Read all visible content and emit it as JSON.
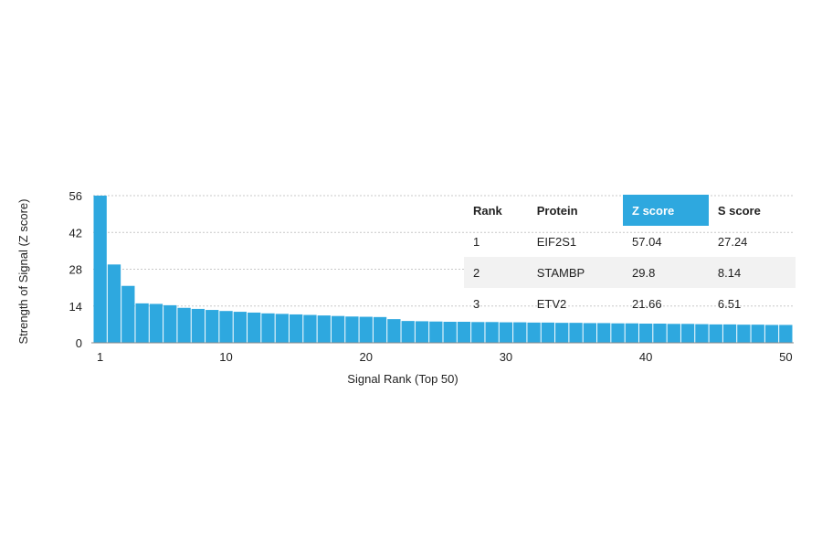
{
  "chart_data": {
    "type": "bar",
    "ylabel": "Strength of Signal (Z score)",
    "xlabel": "Signal Rank (Top 50)",
    "ylim": [
      0,
      56
    ],
    "yticks": [
      0,
      14,
      28,
      42,
      56
    ],
    "xticks": [
      1,
      10,
      20,
      30,
      40,
      50
    ],
    "grid": "dotted horizontal at y ticks",
    "bar_color": "#2ea8df",
    "categories": [
      1,
      2,
      3,
      4,
      5,
      6,
      7,
      8,
      9,
      10,
      11,
      12,
      13,
      14,
      15,
      16,
      17,
      18,
      19,
      20,
      21,
      22,
      23,
      24,
      25,
      26,
      27,
      28,
      29,
      30,
      31,
      32,
      33,
      34,
      35,
      36,
      37,
      38,
      39,
      40,
      41,
      42,
      43,
      44,
      45,
      46,
      47,
      48,
      49,
      50
    ],
    "values": [
      57.04,
      29.8,
      21.66,
      15,
      14.8,
      14.3,
      13.3,
      12.9,
      12.5,
      12.1,
      11.8,
      11.5,
      11.2,
      11.0,
      10.8,
      10.6,
      10.4,
      10.2,
      10.0,
      9.9,
      9.8,
      9.0,
      8.3,
      8.2,
      8.1,
      8.0,
      8.0,
      7.9,
      7.9,
      7.8,
      7.8,
      7.7,
      7.7,
      7.6,
      7.6,
      7.5,
      7.5,
      7.4,
      7.4,
      7.3,
      7.3,
      7.2,
      7.2,
      7.1,
      7.0,
      7.0,
      6.9,
      6.9,
      6.8,
      6.8
    ]
  },
  "table": {
    "headers": {
      "rank": "Rank",
      "protein": "Protein",
      "z": "Z score",
      "s": "S score"
    },
    "header_highlight_color": "#2ea8df",
    "rows": [
      {
        "rank": "1",
        "protein": "EIF2S1",
        "z": "57.04",
        "s": "27.24"
      },
      {
        "rank": "2",
        "protein": "STAMBP",
        "z": "29.8",
        "s": "8.14"
      },
      {
        "rank": "3",
        "protein": "ETV2",
        "z": "21.66",
        "s": "6.51"
      }
    ]
  }
}
